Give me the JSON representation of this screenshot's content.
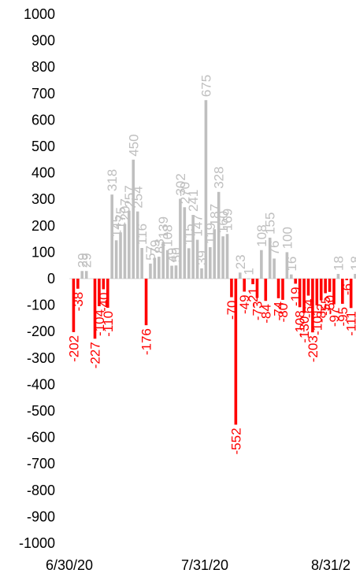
{
  "chart_data": {
    "type": "bar",
    "title": "",
    "xlabel": "",
    "ylabel": "",
    "ylim": [
      -1000,
      1000
    ],
    "yticks": [
      1000,
      900,
      800,
      700,
      600,
      500,
      400,
      300,
      200,
      100,
      0,
      -100,
      -200,
      -300,
      -400,
      -500,
      -600,
      -700,
      -800,
      -900,
      -1000
    ],
    "x_tick_labels": [
      "6/30/20",
      "7/31/20",
      "8/31/2"
    ],
    "x_start": "2020-06-30",
    "x_end": "2020-08-31",
    "colors": {
      "positive": "#BFBFBF",
      "negative": "#FF0000"
    },
    "grid": false,
    "legend": "none",
    "bars": [
      {
        "x": "2020-07-01",
        "value": -202,
        "label": "-202"
      },
      {
        "x": "2020-07-02",
        "value": -38,
        "label": "-38"
      },
      {
        "x": "2020-07-03",
        "value": 29,
        "label": "29"
      },
      {
        "x": "2020-07-04",
        "value": 29,
        "label": "29"
      },
      {
        "x": "2020-07-06",
        "value": -227,
        "label": "-227"
      },
      {
        "x": "2020-07-07",
        "value": -104,
        "label": "-104"
      },
      {
        "x": "2020-07-08",
        "value": -40,
        "label": "-40"
      },
      {
        "x": "2020-07-09",
        "value": -110,
        "label": "-110"
      },
      {
        "x": "2020-07-10",
        "value": 318,
        "label": "318"
      },
      {
        "x": "2020-07-11",
        "value": 145,
        "label": "145"
      },
      {
        "x": "2020-07-12",
        "value": 175,
        "label": "175"
      },
      {
        "x": "2020-07-13",
        "value": 207,
        "label": "207"
      },
      {
        "x": "2020-07-14",
        "value": 257,
        "label": "257"
      },
      {
        "x": "2020-07-15",
        "value": 450,
        "label": "450"
      },
      {
        "x": "2020-07-16",
        "value": 254,
        "label": "254"
      },
      {
        "x": "2020-07-17",
        "value": 116,
        "label": "116"
      },
      {
        "x": "2020-07-18",
        "value": -176,
        "label": "-176"
      },
      {
        "x": "2020-07-19",
        "value": 57,
        "label": "57"
      },
      {
        "x": "2020-07-20",
        "value": 79,
        "label": "79"
      },
      {
        "x": "2020-07-21",
        "value": 83,
        "label": "83"
      },
      {
        "x": "2020-07-22",
        "value": 139,
        "label": "139"
      },
      {
        "x": "2020-07-23",
        "value": 108,
        "label": "108"
      },
      {
        "x": "2020-07-24",
        "value": 49,
        "label": "49"
      },
      {
        "x": "2020-07-25",
        "value": 50,
        "label": "50"
      },
      {
        "x": "2020-07-26",
        "value": 302,
        "label": "302"
      },
      {
        "x": "2020-07-27",
        "value": 270,
        "label": "270"
      },
      {
        "x": "2020-07-28",
        "value": 115,
        "label": "115"
      },
      {
        "x": "2020-07-29",
        "value": 241,
        "label": "241"
      },
      {
        "x": "2020-07-30",
        "value": 147,
        "label": "147"
      },
      {
        "x": "2020-07-31",
        "value": 39,
        "label": "39"
      },
      {
        "x": "2020-08-01",
        "value": 675,
        "label": "675"
      },
      {
        "x": "2020-08-02",
        "value": 119,
        "label": "119"
      },
      {
        "x": "2020-08-03",
        "value": 187,
        "label": "187"
      },
      {
        "x": "2020-08-04",
        "value": 328,
        "label": "328"
      },
      {
        "x": "2020-08-05",
        "value": 160,
        "label": "160"
      },
      {
        "x": "2020-08-06",
        "value": 169,
        "label": "169"
      },
      {
        "x": "2020-08-07",
        "value": -70,
        "label": "-70"
      },
      {
        "x": "2020-08-08",
        "value": -552,
        "label": "-552"
      },
      {
        "x": "2020-08-09",
        "value": 23,
        "label": "23"
      },
      {
        "x": "2020-08-10",
        "value": -49,
        "label": "-49"
      },
      {
        "x": "2020-08-11",
        "value": 1,
        "label": "1"
      },
      {
        "x": "2020-08-12",
        "value": -21,
        "label": "-21"
      },
      {
        "x": "2020-08-13",
        "value": -73,
        "label": "-73"
      },
      {
        "x": "2020-08-14",
        "value": 108,
        "label": "108"
      },
      {
        "x": "2020-08-15",
        "value": -84,
        "label": "-84"
      },
      {
        "x": "2020-08-16",
        "value": 155,
        "label": "155"
      },
      {
        "x": "2020-08-17",
        "value": 76,
        "label": "76"
      },
      {
        "x": "2020-08-18",
        "value": -74,
        "label": "-74"
      },
      {
        "x": "2020-08-19",
        "value": -80,
        "label": "-80"
      },
      {
        "x": "2020-08-20",
        "value": 100,
        "label": "100"
      },
      {
        "x": "2020-08-21",
        "value": 16,
        "label": "16"
      },
      {
        "x": "2020-08-22",
        "value": -19,
        "label": "-19"
      },
      {
        "x": "2020-08-23",
        "value": -108,
        "label": "-108"
      },
      {
        "x": "2020-08-24",
        "value": -130,
        "label": "-130"
      },
      {
        "x": "2020-08-25",
        "value": -64,
        "label": "-64"
      },
      {
        "x": "2020-08-26",
        "value": -203,
        "label": "-203"
      },
      {
        "x": "2020-08-27",
        "value": -101,
        "label": "-101"
      },
      {
        "x": "2020-08-28",
        "value": -82,
        "label": "-82"
      },
      {
        "x": "2020-08-29",
        "value": -55,
        "label": "-55"
      },
      {
        "x": "2020-08-30",
        "value": -50,
        "label": "-50"
      },
      {
        "x": "2020-08-31",
        "value": -97,
        "label": "-97"
      },
      {
        "x": "2020-09-01",
        "value": 18,
        "label": "18"
      },
      {
        "x": "2020-09-02",
        "value": -95,
        "label": "-95"
      },
      {
        "x": "2020-09-03",
        "value": -6,
        "label": "-6"
      },
      {
        "x": "2020-09-04",
        "value": -111,
        "label": "-111"
      },
      {
        "x": "2020-09-05",
        "value": 18,
        "label": "18"
      }
    ]
  }
}
